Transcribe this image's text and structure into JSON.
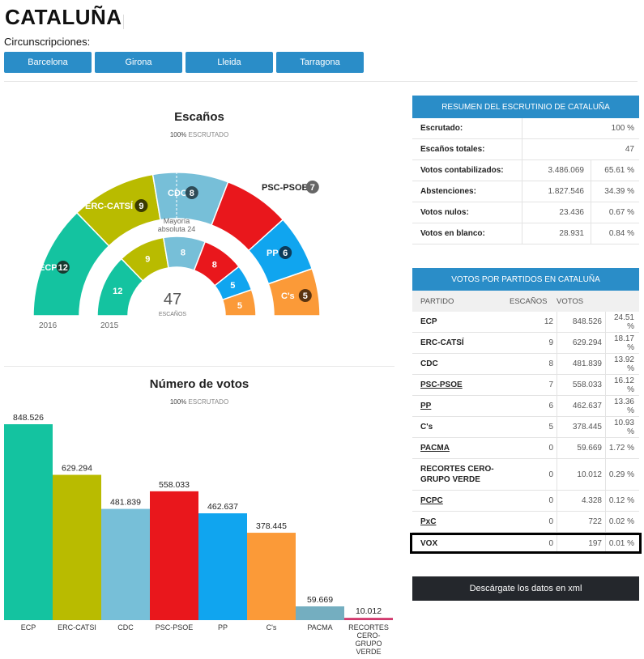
{
  "header": {
    "title": "CATALUÑA",
    "circ_label": "Circunscripciones:",
    "buttons": [
      "Barcelona",
      "Girona",
      "Lleida",
      "Tarragona"
    ]
  },
  "seats_section": {
    "title": "Escaños",
    "pct": "100%",
    "pct_label": "ESCRUTADO",
    "majority_line1": "Mayoría",
    "majority_line2": "absoluta 24",
    "total": "47",
    "total_label": "ESCAÑOS",
    "year_outer": "2016",
    "year_inner": "2015"
  },
  "votes_section": {
    "title": "Número de votos",
    "pct": "100%",
    "pct_label": "ESCRUTADO"
  },
  "summary": {
    "header": "RESUMEN DEL ESCRUTINIO DE CATALUÑA",
    "rows": [
      {
        "label": "Escrutado:",
        "value": "100 %"
      },
      {
        "label": "Escaños totales:",
        "value": "47"
      },
      {
        "label": "Votos contabilizados:",
        "value": "3.486.069",
        "pct": "65.61 %"
      },
      {
        "label": "Abstenciones:",
        "value": "1.827.546",
        "pct": "34.39 %"
      },
      {
        "label": "Votos nulos:",
        "value": "23.436",
        "pct": "0.67 %"
      },
      {
        "label": "Votos en blanco:",
        "value": "28.931",
        "pct": "0.84 %"
      }
    ]
  },
  "parties_table": {
    "header": "VOTOS POR PARTIDOS EN CATALUÑA",
    "col_party": "PARTIDO",
    "col_seats": "ESCAÑOS",
    "col_votes": "VOTOS",
    "rows": [
      {
        "name": "ECP",
        "seats": "12",
        "votes": "848.526",
        "pct": "24.51 %",
        "underline": false
      },
      {
        "name": "ERC-CATSÍ",
        "seats": "9",
        "votes": "629.294",
        "pct": "18.17 %",
        "underline": false
      },
      {
        "name": "CDC",
        "seats": "8",
        "votes": "481.839",
        "pct": "13.92 %",
        "underline": false
      },
      {
        "name": "PSC-PSOE",
        "seats": "7",
        "votes": "558.033",
        "pct": "16.12 %",
        "underline": true
      },
      {
        "name": "PP",
        "seats": "6",
        "votes": "462.637",
        "pct": "13.36 %",
        "underline": true
      },
      {
        "name": "C's",
        "seats": "5",
        "votes": "378.445",
        "pct": "10.93 %",
        "underline": false
      },
      {
        "name": "PACMA",
        "seats": "0",
        "votes": "59.669",
        "pct": "1.72 %",
        "underline": true
      },
      {
        "name": "RECORTES CERO-GRUPO VERDE",
        "seats": "0",
        "votes": "10.012",
        "pct": "0.29 %",
        "underline": false
      },
      {
        "name": "PCPC",
        "seats": "0",
        "votes": "4.328",
        "pct": "0.12 %",
        "underline": true
      },
      {
        "name": "PxC",
        "seats": "0",
        "votes": "722",
        "pct": "0.02 %",
        "underline": true
      },
      {
        "name": "VOX",
        "seats": "0",
        "votes": "197",
        "pct": "0.01 %",
        "underline": false
      }
    ]
  },
  "download_label": "Descárgate los datos en xml",
  "colors": {
    "ECP": "#14c3a0",
    "ERC": "#b9bb00",
    "CDC": "#77bfd8",
    "PSC": "#e9171c",
    "PP": "#10a5ef",
    "CS": "#fb9a38",
    "PACMA": "#74aec0",
    "RECORTES": "#d13a6e",
    "accent": "#2a8dc8"
  },
  "chart_data": [
    {
      "type": "pie",
      "title": "Escaños",
      "variant": "hemicycle",
      "series": [
        {
          "name": "2016",
          "labels": [
            "ECP",
            "ERC-CATSÍ",
            "CDC",
            "PSC-PSOE",
            "PP",
            "C's"
          ],
          "values": [
            12,
            9,
            8,
            7,
            6,
            5
          ]
        },
        {
          "name": "2015",
          "labels": [
            "ECP",
            "ERC-CATSÍ",
            "CDC",
            "PSC-PSOE",
            "PP",
            "C's"
          ],
          "values": [
            12,
            9,
            8,
            8,
            5,
            5
          ]
        }
      ]
    },
    {
      "type": "bar",
      "title": "Número de votos",
      "categories": [
        "ECP",
        "ERC-CATSI",
        "CDC",
        "PSC-PSOE",
        "PP",
        "C's",
        "PACMA",
        "RECORTES CERO-GRUPO VERDE"
      ],
      "values": [
        848526,
        629294,
        481839,
        558033,
        462637,
        378445,
        59669,
        10012
      ],
      "value_labels": [
        "848.526",
        "629.294",
        "481.839",
        "558.033",
        "462.637",
        "378.445",
        "59.669",
        "10.012"
      ],
      "ylim": [
        0,
        848526
      ]
    }
  ]
}
